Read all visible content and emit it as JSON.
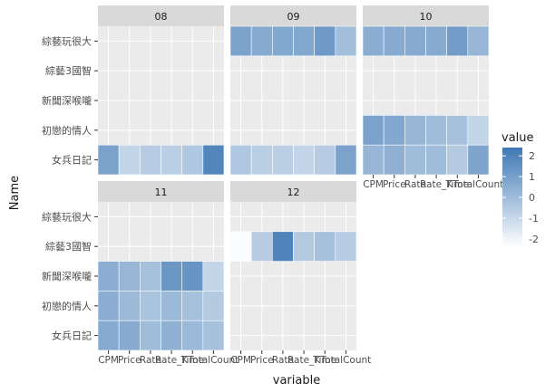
{
  "chart_data": {
    "type": "heatmap",
    "xlabel": "variable",
    "ylabel": "Name",
    "rows": [
      "綜藝玩很大",
      "綜藝3國智",
      "新聞深喉嚨",
      "初戀的情人",
      "女兵日記"
    ],
    "columns": [
      "CPM",
      "Price",
      "Rate",
      "Rate_K",
      "Time",
      "TotalCount"
    ],
    "x_tick_labels": [
      "CPM",
      "Price",
      "Rate",
      "Rate_K",
      "Time",
      "TotalCount"
    ],
    "legend": {
      "title": "value",
      "ticks": [
        2,
        1,
        0,
        -1,
        -2
      ],
      "min": -2.4,
      "max": 2.4,
      "low_color": "#ffffff",
      "high_color": "#3f78b4"
    },
    "panels": [
      {
        "label": "08",
        "cells": [
          [
            null,
            null,
            null,
            null,
            null,
            null
          ],
          [
            null,
            null,
            null,
            null,
            null,
            null
          ],
          [
            null,
            null,
            null,
            null,
            null,
            null
          ],
          [
            null,
            null,
            null,
            null,
            null,
            null
          ],
          [
            0.9,
            -0.9,
            -0.6,
            -0.7,
            -0.4,
            1.9
          ]
        ]
      },
      {
        "label": "09",
        "cells": [
          [
            0.9,
            0.6,
            0.7,
            0.7,
            1.2,
            -0.1
          ],
          [
            null,
            null,
            null,
            null,
            null,
            null
          ],
          [
            null,
            null,
            null,
            null,
            null,
            null
          ],
          [
            null,
            null,
            null,
            null,
            null,
            null
          ],
          [
            -0.4,
            -0.7,
            -0.7,
            -0.9,
            -0.6,
            0.9
          ]
        ]
      },
      {
        "label": "10",
        "cells": [
          [
            0.5,
            0.6,
            0.6,
            0.6,
            1.1,
            0.2
          ],
          [
            null,
            null,
            null,
            null,
            null,
            null
          ],
          [
            null,
            null,
            null,
            null,
            null,
            null
          ],
          [
            0.9,
            0.7,
            0.2,
            0.0,
            -0.2,
            -0.9
          ],
          [
            0.2,
            0.4,
            0.0,
            0.0,
            -0.5,
            0.8
          ]
        ]
      },
      {
        "label": "11",
        "cells": [
          [
            null,
            null,
            null,
            null,
            null,
            null
          ],
          [
            null,
            null,
            null,
            null,
            null,
            null
          ],
          [
            0.5,
            0.2,
            -0.2,
            1.3,
            1.4,
            -0.9
          ],
          [
            0.5,
            0.1,
            -0.3,
            0.1,
            -0.2,
            -0.5
          ],
          [
            0.6,
            0.6,
            0.0,
            0.4,
            0.1,
            -0.2
          ]
        ]
      },
      {
        "label": "12",
        "cells": [
          [
            null,
            null,
            null,
            null,
            null,
            null
          ],
          [
            -2.3,
            -0.6,
            2.0,
            -0.5,
            -0.2,
            -0.6
          ],
          [
            null,
            null,
            null,
            null,
            null,
            null
          ],
          [
            null,
            null,
            null,
            null,
            null,
            null
          ],
          [
            null,
            null,
            null,
            null,
            null,
            null
          ]
        ]
      }
    ]
  }
}
